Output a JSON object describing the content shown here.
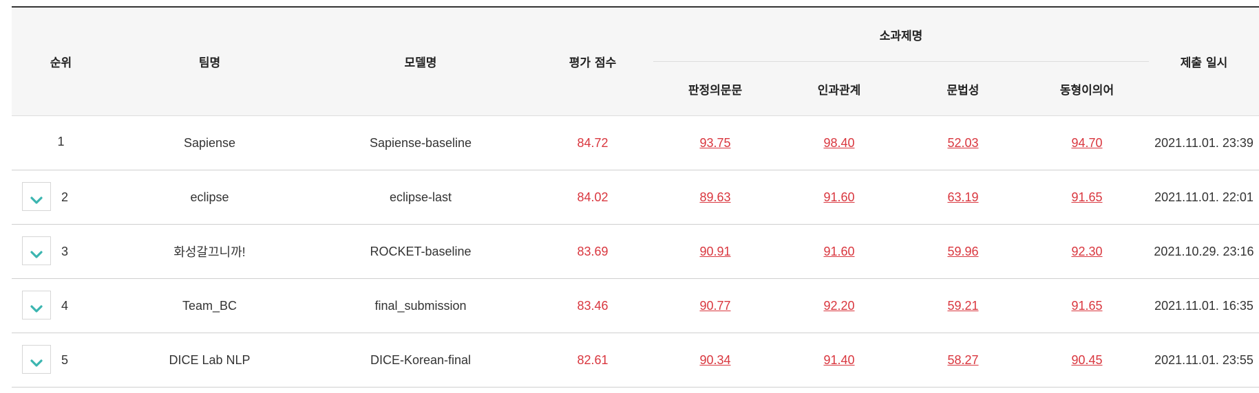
{
  "headers": {
    "rank": "순위",
    "team": "팀명",
    "model": "모델명",
    "score": "평가 점수",
    "subtasks_group": "소과제명",
    "subtasks": [
      "판정의문문",
      "인과관계",
      "문법성",
      "동형이의어"
    ],
    "submitted": "제출 일시"
  },
  "rows": [
    {
      "rank": "1",
      "team": "Sapiense",
      "model": "Sapiense-baseline",
      "score": "84.72",
      "subs": [
        "93.75",
        "98.40",
        "52.03",
        "94.70"
      ],
      "date": "2021.11.01. 23:39",
      "expandable": false
    },
    {
      "rank": "2",
      "team": "eclipse",
      "model": "eclipse-last",
      "score": "84.02",
      "subs": [
        "89.63",
        "91.60",
        "63.19",
        "91.65"
      ],
      "date": "2021.11.01. 22:01",
      "expandable": true
    },
    {
      "rank": "3",
      "team": "화성갈끄니까!",
      "model": "ROCKET-baseline",
      "score": "83.69",
      "subs": [
        "90.91",
        "91.60",
        "59.96",
        "92.30"
      ],
      "date": "2021.10.29. 23:16",
      "expandable": true
    },
    {
      "rank": "4",
      "team": "Team_BC",
      "model": "final_submission",
      "score": "83.46",
      "subs": [
        "90.77",
        "92.20",
        "59.21",
        "91.65"
      ],
      "date": "2021.11.01. 16:35",
      "expandable": true
    },
    {
      "rank": "5",
      "team": "DICE Lab NLP",
      "model": "DICE-Korean-final",
      "score": "82.61",
      "subs": [
        "90.34",
        "91.40",
        "58.27",
        "90.45"
      ],
      "date": "2021.11.01. 23:55",
      "expandable": true
    }
  ],
  "colors": {
    "score": "#d9363e",
    "accent_icon": "#3bb5b0",
    "header_bg": "#f6f6f6"
  },
  "icons": {
    "expand": "chevron-down-icon"
  }
}
